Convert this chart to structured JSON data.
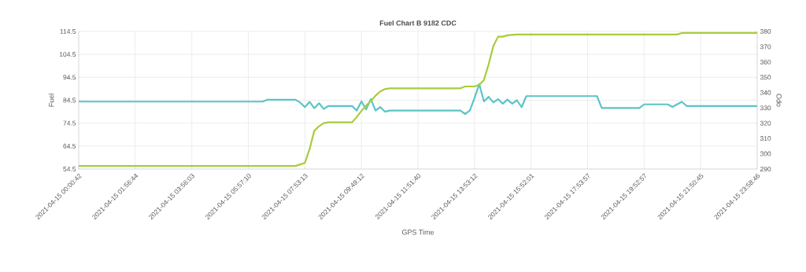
{
  "chart_data": {
    "type": "line",
    "title": "Fuel Chart B 9182 CDC",
    "xlabel": "GPS Time",
    "ylabel": "Fuel",
    "y2label": "Odo",
    "categories": [
      "2021-04-15 00:00:42",
      null,
      null,
      null,
      null,
      null,
      null,
      null,
      null,
      null,
      null,
      null,
      "2021-04-15 01:56:44",
      null,
      null,
      null,
      null,
      null,
      null,
      null,
      null,
      null,
      null,
      null,
      "2021-04-15 03:56:03",
      null,
      null,
      null,
      null,
      null,
      null,
      null,
      null,
      null,
      null,
      null,
      "2021-04-15 05:57:10",
      null,
      null,
      null,
      null,
      null,
      null,
      null,
      null,
      null,
      null,
      null,
      "2021-04-15 07:53:13",
      null,
      null,
      null,
      null,
      null,
      null,
      null,
      null,
      null,
      null,
      null,
      "2021-04-15 09:49:12",
      null,
      null,
      null,
      null,
      null,
      null,
      null,
      null,
      null,
      null,
      null,
      "2021-04-15 11:51:40",
      null,
      null,
      null,
      null,
      null,
      null,
      null,
      null,
      null,
      null,
      null,
      "2021-04-15 13:53:12",
      null,
      null,
      null,
      null,
      null,
      null,
      null,
      null,
      null,
      null,
      null,
      "2021-04-15 15:52:01",
      null,
      null,
      null,
      null,
      null,
      null,
      null,
      null,
      null,
      null,
      null,
      "2021-04-15 17:53:57",
      null,
      null,
      null,
      null,
      null,
      null,
      null,
      null,
      null,
      null,
      null,
      "2021-04-15 19:52:57",
      null,
      null,
      null,
      null,
      null,
      null,
      null,
      null,
      null,
      null,
      null,
      "2021-04-15 21:50:45",
      null,
      null,
      null,
      null,
      null,
      null,
      null,
      null,
      null,
      null,
      null,
      "2021-04-15 23:58:46"
    ],
    "ylim": [
      54.5,
      114.5
    ],
    "yticks": [
      54.5,
      64.5,
      74.5,
      84.5,
      94.5,
      104.5,
      114.5
    ],
    "y2lim": [
      290,
      380
    ],
    "y2ticks": [
      290,
      300,
      310,
      320,
      330,
      340,
      350,
      360,
      370,
      380
    ],
    "grid": true,
    "line_style": "solid",
    "series": [
      {
        "color": "#5bc4c8",
        "values": [
          83.9,
          83.9,
          83.9,
          83.9,
          83.9,
          83.9,
          83.9,
          83.9,
          83.9,
          83.9,
          83.9,
          83.9,
          83.9,
          83.9,
          83.9,
          83.9,
          83.9,
          83.9,
          83.9,
          83.9,
          83.9,
          83.9,
          83.9,
          83.9,
          83.9,
          83.9,
          83.9,
          83.9,
          83.9,
          83.9,
          83.9,
          83.9,
          83.9,
          83.9,
          83.9,
          83.9,
          83.9,
          83.9,
          83.9,
          83.9,
          84.7,
          84.7,
          84.7,
          84.7,
          84.7,
          84.7,
          84.7,
          83.5,
          81.5,
          83.8,
          81.0,
          83.2,
          80.7,
          82.0,
          82.0,
          82.0,
          82.0,
          82.0,
          82.0,
          80.0,
          84.0,
          80.5,
          85.0,
          80.0,
          81.5,
          79.5,
          80.0,
          80.0,
          80.0,
          80.0,
          80.0,
          80.0,
          80.0,
          80.0,
          80.0,
          80.0,
          80.0,
          80.0,
          80.0,
          80.0,
          80.0,
          80.0,
          78.5,
          80.0,
          85.4,
          91.6,
          84.0,
          86.0,
          83.5,
          85.0,
          83.0,
          84.8,
          83.0,
          84.5,
          81.5,
          86.3,
          86.3,
          86.3,
          86.3,
          86.3,
          86.3,
          86.3,
          86.3,
          86.3,
          86.3,
          86.3,
          86.3,
          86.3,
          86.3,
          86.3,
          86.3,
          81.1,
          81.1,
          81.1,
          81.1,
          81.1,
          81.1,
          81.1,
          81.1,
          81.1,
          82.7,
          82.7,
          82.7,
          82.7,
          82.7,
          82.7,
          81.6,
          82.7,
          83.8,
          82.0,
          82.0,
          82.0,
          82.0,
          82.0,
          82.0,
          82.0,
          82.0,
          82.0,
          82.0,
          82.0,
          82.0,
          82.0,
          82.0,
          82.0,
          82.0
        ]
      },
      {
        "color": "#a8cc3c",
        "axis": "y2",
        "values": [
          292.0,
          292.0,
          292.0,
          292.0,
          292.0,
          292.0,
          292.0,
          292.0,
          292.0,
          292.0,
          292.0,
          292.0,
          292.0,
          292.0,
          292.0,
          292.0,
          292.0,
          292.0,
          292.0,
          292.0,
          292.0,
          292.0,
          292.0,
          292.0,
          292.0,
          292.0,
          292.0,
          292.0,
          292.0,
          292.0,
          292.0,
          292.0,
          292.0,
          292.0,
          292.0,
          292.0,
          292.0,
          292.0,
          292.0,
          292.0,
          292.0,
          292.0,
          292.0,
          292.0,
          292.0,
          292.0,
          292.0,
          293.0,
          294.0,
          303.0,
          315.0,
          318.0,
          320.0,
          320.5,
          320.5,
          320.5,
          320.5,
          320.5,
          320.5,
          324.0,
          328.0,
          331.5,
          334.5,
          338.0,
          340.8,
          342.3,
          342.8,
          342.8,
          342.8,
          342.8,
          342.8,
          342.8,
          342.8,
          342.8,
          342.8,
          342.8,
          342.8,
          342.8,
          342.8,
          342.8,
          342.8,
          342.8,
          344.0,
          344.0,
          344.0,
          345.0,
          348.3,
          358.5,
          370.5,
          376.6,
          376.6,
          377.5,
          377.8,
          378.0,
          378.0,
          378.0,
          378.0,
          378.0,
          378.0,
          378.0,
          378.0,
          378.0,
          378.0,
          378.0,
          378.0,
          378.0,
          378.0,
          378.0,
          378.0,
          378.0,
          378.0,
          378.0,
          378.0,
          378.0,
          378.0,
          378.0,
          378.0,
          378.0,
          378.0,
          378.0,
          378.0,
          378.0,
          378.0,
          378.0,
          378.0,
          378.0,
          378.0,
          378.0,
          379.0,
          379.0,
          379.0,
          379.0,
          379.0,
          379.0,
          379.0,
          379.0,
          379.0,
          379.0,
          379.0,
          379.0,
          379.0,
          379.0,
          379.0,
          379.0,
          379.0
        ]
      }
    ]
  }
}
